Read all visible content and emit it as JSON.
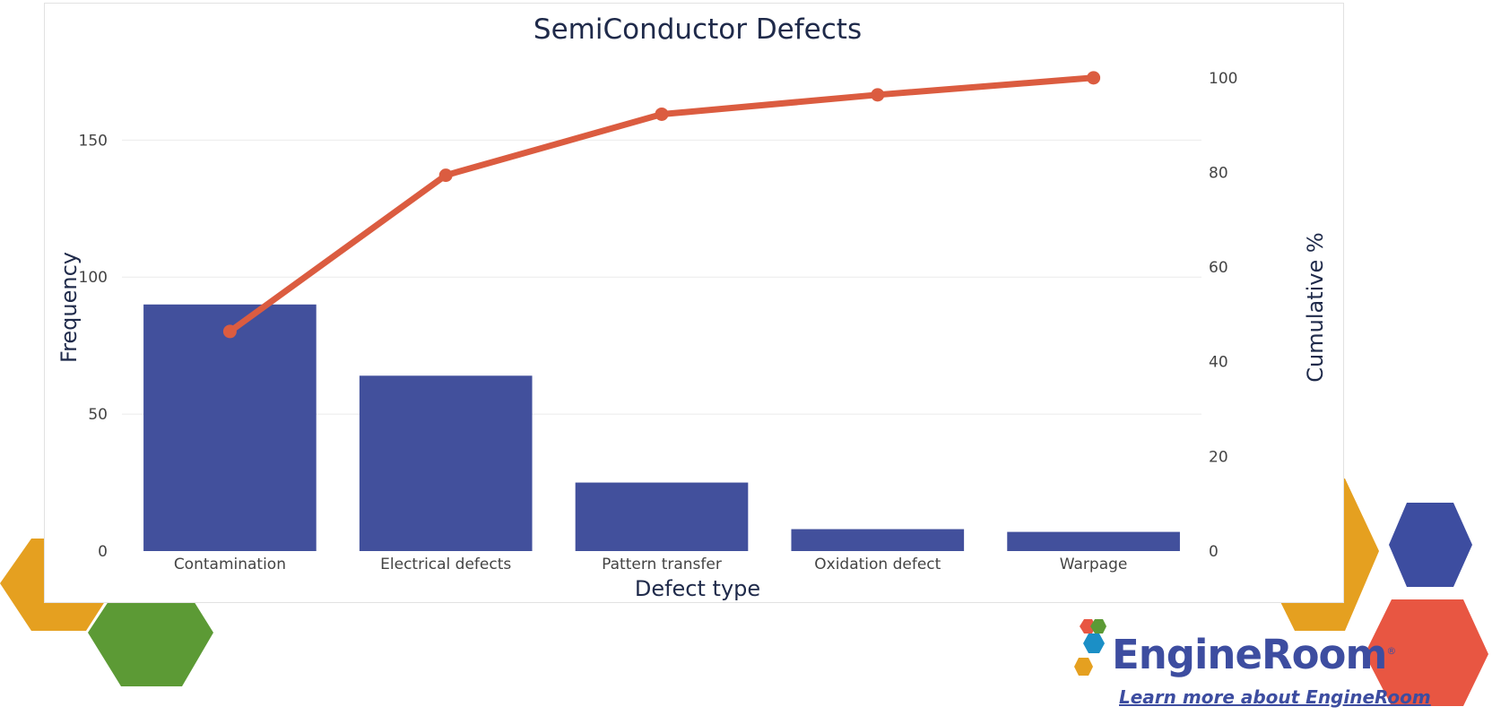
{
  "chart_data": {
    "type": "bar",
    "title": "SemiConductor Defects",
    "xlabel": "Defect type",
    "ylabel": "Frequency",
    "y2label": "Cumulative %",
    "categories": [
      "Contamination",
      "Electrical defects",
      "Pattern transfer",
      "Oxidation defect",
      "Warpage"
    ],
    "series": [
      {
        "type": "bar",
        "axis": "left",
        "values": [
          90,
          64,
          25,
          8,
          7
        ],
        "color": "#42509c"
      },
      {
        "type": "line",
        "axis": "right",
        "values": [
          46.4,
          79.4,
          92.3,
          96.4,
          100
        ],
        "color": "#db5c40"
      }
    ],
    "ylim": [
      0,
      190
    ],
    "yticks": [
      0,
      50,
      100,
      150
    ],
    "y2lim": [
      0,
      110
    ],
    "y2ticks": [
      0,
      20,
      40,
      60,
      80,
      100
    ],
    "grid": true,
    "gridcolor": "#ebebeb"
  },
  "brand": {
    "name": "EngineRoom",
    "reg": "®",
    "link_text": "Learn more about EngineRoom",
    "colors": {
      "blue": "#3d4da0",
      "orange": "#e5a020",
      "green": "#5c9a35",
      "red": "#e85642",
      "teal": "#1b8fc6"
    }
  }
}
